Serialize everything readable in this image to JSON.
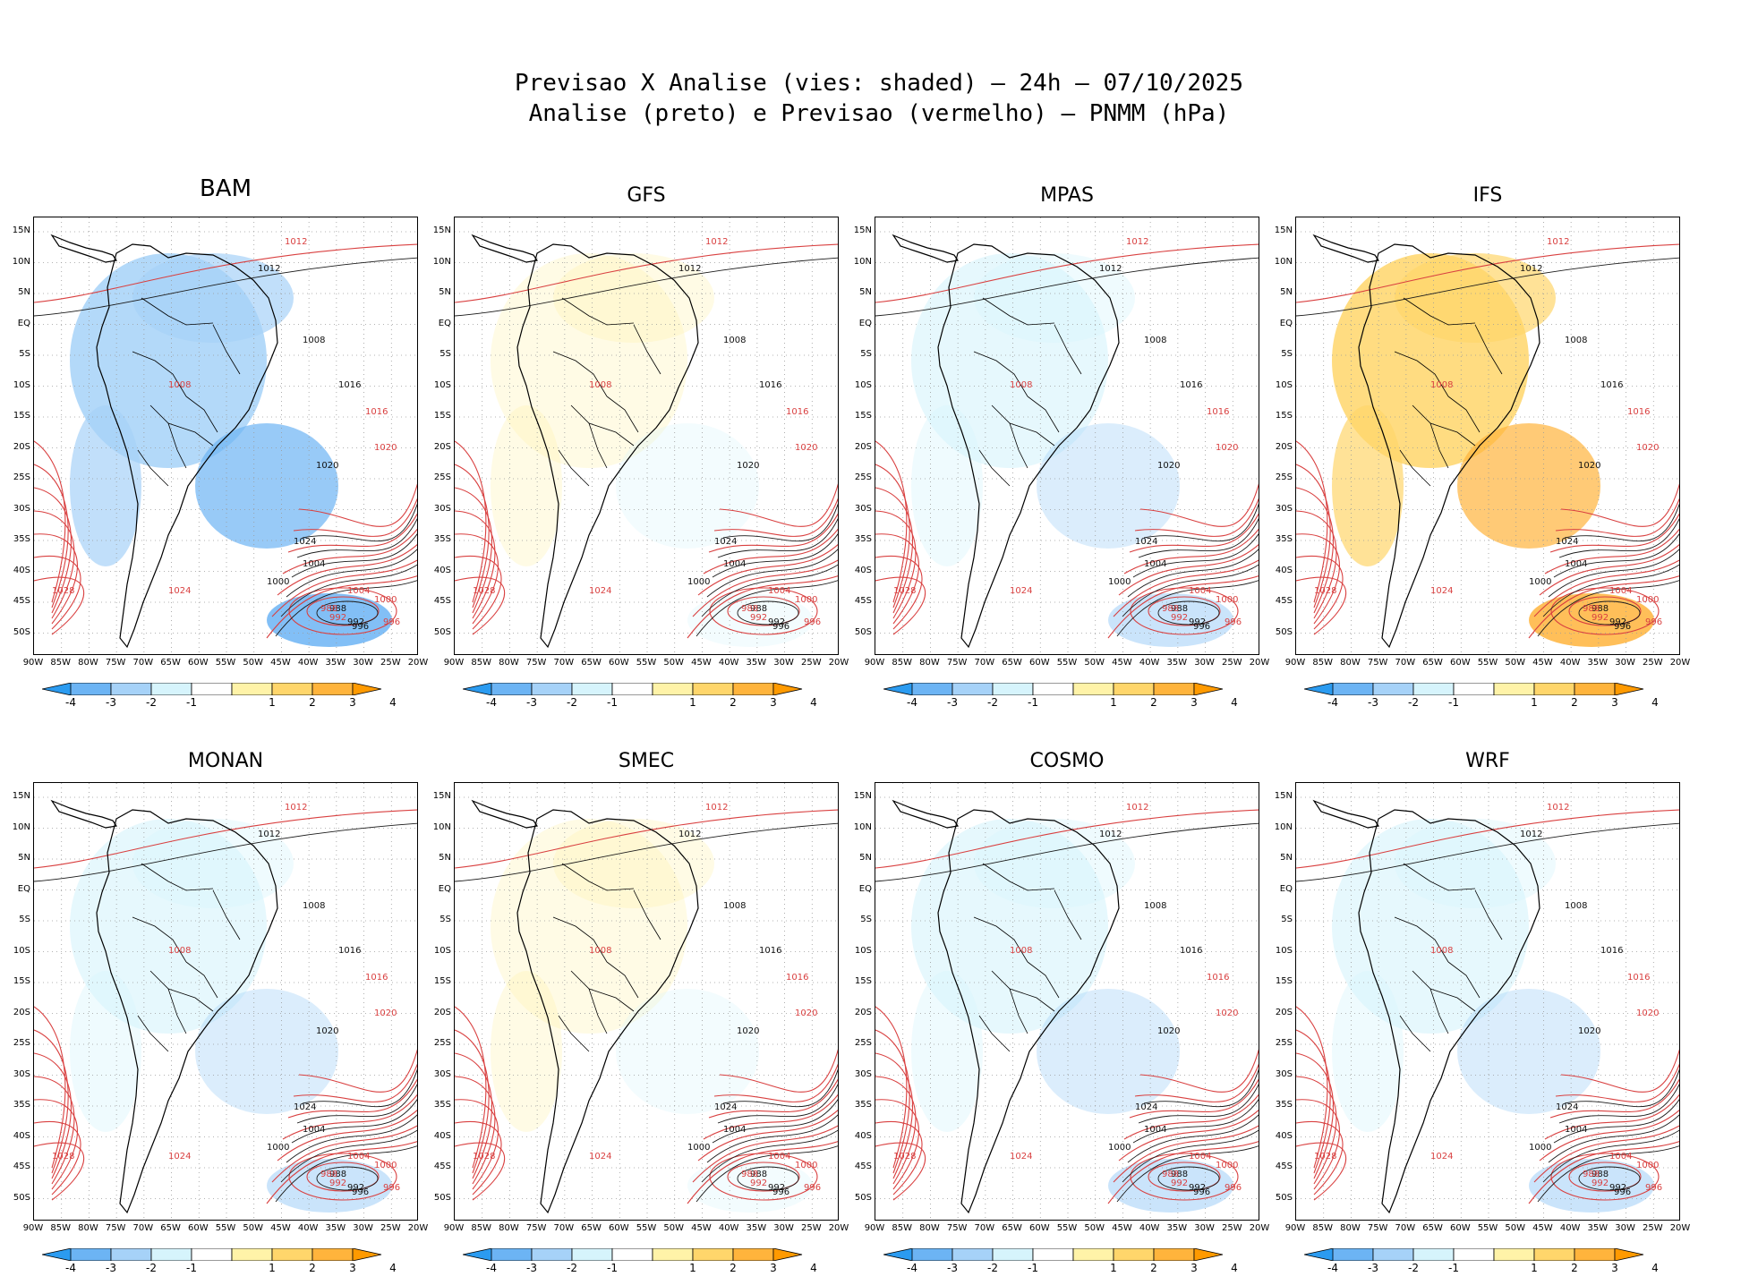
{
  "header": {
    "line1": "Previsao X Analise (vies: shaded) – 24h – 07/10/2025",
    "line2": "Analise (preto) e Previsao (vermelho) – PNMM (hPa)"
  },
  "axes": {
    "lat_labels": [
      "15N",
      "10N",
      "5N",
      "EQ",
      "5S",
      "10S",
      "15S",
      "20S",
      "25S",
      "30S",
      "35S",
      "40S",
      "45S",
      "50S"
    ],
    "lon_labels": [
      "90W",
      "85W",
      "80W",
      "75W",
      "70W",
      "65W",
      "60W",
      "55W",
      "50W",
      "45W",
      "40W",
      "35W",
      "30W",
      "25W",
      "20W"
    ]
  },
  "colorbar": {
    "labels": [
      "-4",
      "-3",
      "-2",
      "-1",
      "1",
      "2",
      "3",
      "4"
    ],
    "colors": [
      "#2b9bf0",
      "#6cb4f4",
      "#a6d2f8",
      "#d6f4fc",
      "#ffffff",
      "#fff3a8",
      "#ffd66b",
      "#ffb43c",
      "#ff9a00"
    ]
  },
  "colors": {
    "analysis_contour": "#1a1a1a",
    "forecast_contour": "#d94040",
    "land_outline": "#000000"
  },
  "panels": [
    {
      "name": "BAM",
      "bias": "negative"
    },
    {
      "name": "GFS",
      "bias": "neutral"
    },
    {
      "name": "MPAS",
      "bias": "weak-negative"
    },
    {
      "name": "IFS",
      "bias": "positive"
    },
    {
      "name": "MONAN",
      "bias": "weak-negative"
    },
    {
      "name": "SMEC",
      "bias": "neutral"
    },
    {
      "name": "COSMO",
      "bias": "weak-negative"
    },
    {
      "name": "WRF",
      "bias": "weak-negative"
    }
  ],
  "contour_labels": {
    "analysis": [
      "1012",
      "1008",
      "1016",
      "1020",
      "1024",
      "1004",
      "1000",
      "988",
      "992",
      "996"
    ],
    "forecast": [
      "1012",
      "1008",
      "1016",
      "1020",
      "1024",
      "1004",
      "1000",
      "988",
      "992",
      "996",
      "1028"
    ]
  }
}
